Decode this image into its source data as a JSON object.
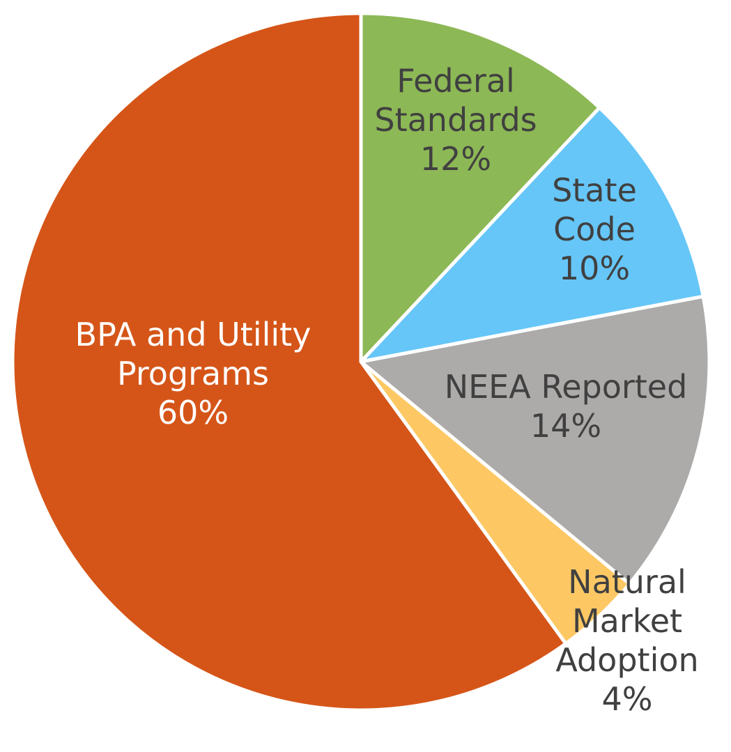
{
  "chart_data": {
    "type": "pie",
    "start_angle_deg": 0,
    "direction": "clockwise",
    "slices": [
      {
        "label_lines": [
          "Federal",
          "Standards"
        ],
        "percent_label": "12%",
        "value": 12,
        "color": "#8db856",
        "text_color": "dark"
      },
      {
        "label_lines": [
          "State",
          "Code"
        ],
        "percent_label": "10%",
        "value": 10,
        "color": "#66c6f8",
        "text_color": "dark"
      },
      {
        "label_lines": [
          "NEEA Reported"
        ],
        "percent_label": "14%",
        "value": 14,
        "color": "#adabaa",
        "text_color": "dark"
      },
      {
        "label_lines": [
          "Natural",
          "Market",
          "Adoption"
        ],
        "percent_label": "4%",
        "value": 4,
        "color": "#fdc864",
        "text_color": "dark"
      },
      {
        "label_lines": [
          "BPA and Utility",
          "Programs"
        ],
        "percent_label": "60%",
        "value": 60,
        "color": "#d55518",
        "text_color": "light"
      }
    ]
  }
}
